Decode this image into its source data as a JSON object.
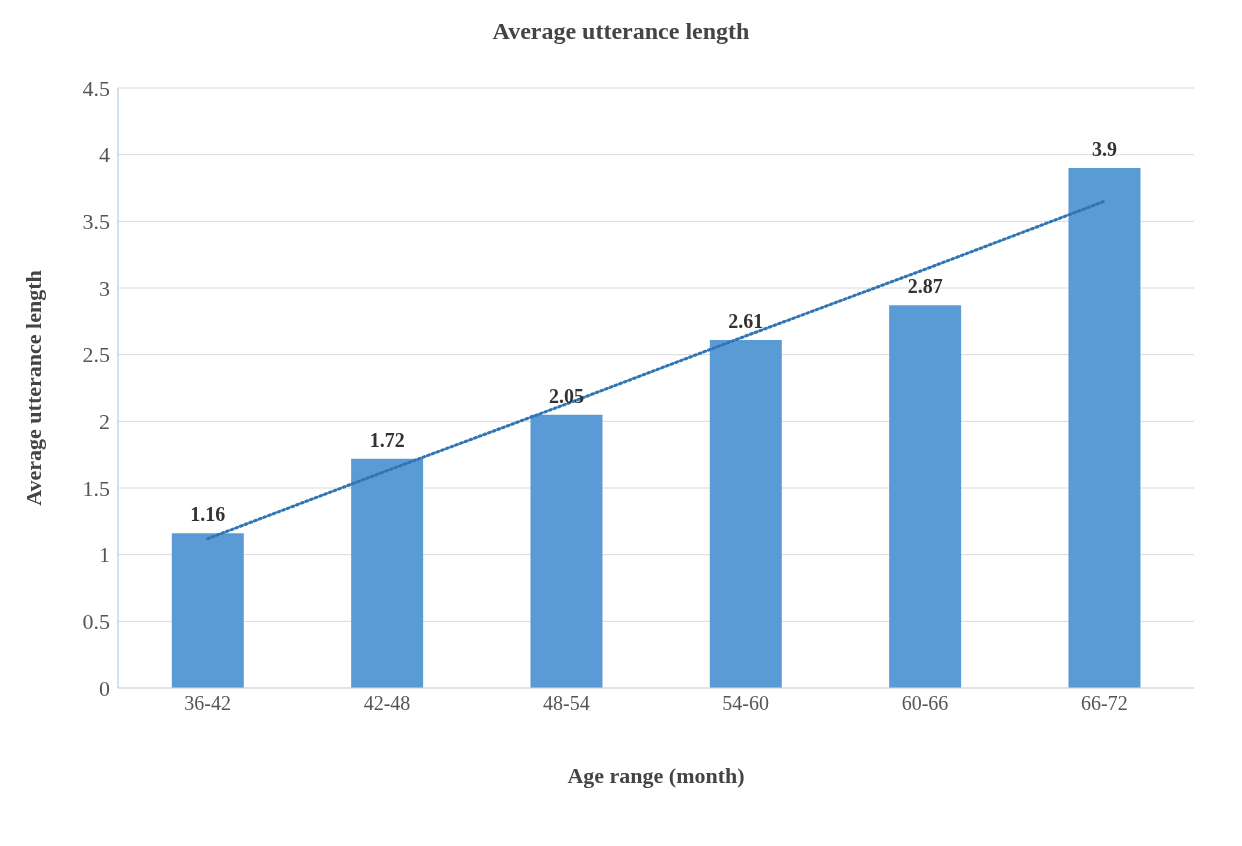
{
  "chart_data": {
    "type": "bar",
    "title": "Average utterance length",
    "xlabel": "Age range (month)",
    "ylabel": "Average utterance length",
    "categories": [
      "36-42",
      "42-48",
      "48-54",
      "54-60",
      "60-66",
      "66-72"
    ],
    "series": [
      {
        "color": "#5b9bd5",
        "values": [
          1.16,
          1.72,
          2.05,
          2.61,
          2.87,
          3.9
        ],
        "value_labels": [
          "1.16",
          "1.72",
          "2.05",
          "2.61",
          "2.87",
          "3.9"
        ]
      },
      {
        "type": "line",
        "color": "#2f75b5",
        "x": [
          "36-42",
          "42-48",
          "48-54",
          "54-60",
          "60-66",
          "66-72"
        ],
        "values": [
          1.12,
          1.63,
          2.13,
          2.64,
          3.14,
          3.65
        ],
        "line_style": "dotted",
        "marker": "none"
      }
    ],
    "ylim": [
      0,
      4.5
    ],
    "yticks": [
      0,
      0.5,
      1,
      1.5,
      2,
      2.5,
      3,
      3.5,
      4,
      4.5
    ],
    "grid": "y",
    "legend": false
  }
}
